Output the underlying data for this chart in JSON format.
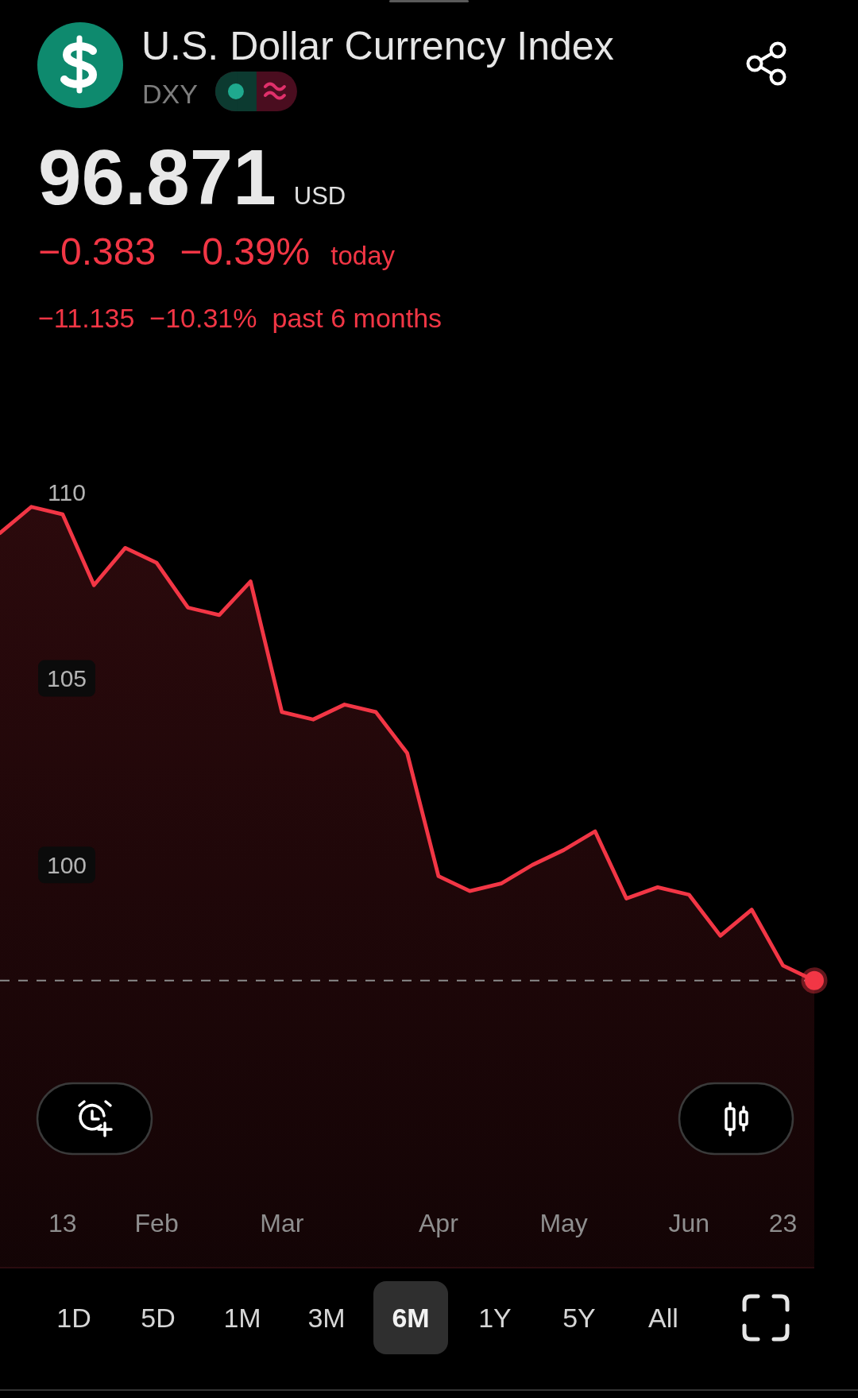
{
  "chart_data": {
    "type": "area",
    "title": "U.S. Dollar Currency Index",
    "subtitle": "DXY",
    "annotations": [
      "96.871",
      "USD",
      "−0.383",
      "−0.39%",
      "today",
      "−11.135",
      "−10.31%",
      "past 6 months",
      "1D",
      "5D",
      "1M",
      "3M",
      "6M",
      "1Y",
      "5Y",
      "All"
    ],
    "categories": [
      null,
      null,
      "13",
      null,
      null,
      "Feb",
      null,
      null,
      null,
      "Mar",
      null,
      null,
      null,
      null,
      "Apr",
      null,
      null,
      null,
      "May",
      null,
      null,
      null,
      "Jun",
      null,
      null,
      "23",
      null
    ],
    "series": [
      {
        "color": "#f23645",
        "values": [
          108.9,
          109.6,
          109.4,
          107.5,
          108.5,
          108.1,
          106.9,
          106.7,
          107.6,
          104.1,
          103.9,
          104.3,
          104.1,
          103.0,
          99.7,
          99.3,
          99.5,
          100.0,
          100.4,
          100.9,
          99.1,
          99.4,
          99.2,
          98.1,
          98.8,
          97.3,
          96.9
        ]
      },
      {
        "type": "scatter",
        "color": "#f23645",
        "marker": "circle",
        "values": [
          null,
          null,
          null,
          null,
          null,
          null,
          null,
          null,
          null,
          null,
          null,
          null,
          null,
          null,
          null,
          null,
          null,
          null,
          null,
          null,
          null,
          null,
          null,
          null,
          null,
          null,
          96.9
        ]
      }
    ],
    "ylim": [
      89.2,
      110
    ],
    "yticks": [
      100,
      105,
      110
    ],
    "ref_lines": [
      {
        "axis": "y",
        "value": 96.9,
        "color": "#8a8a8a",
        "line_style": "dashed"
      }
    ]
  }
}
